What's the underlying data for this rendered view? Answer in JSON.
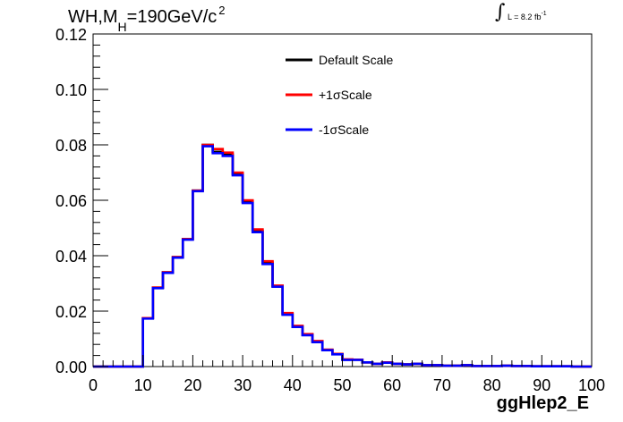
{
  "title": {
    "main": "WH,M",
    "subscript": "H",
    "rest": "=190GeV/c",
    "superscript": "2"
  },
  "lumi": {
    "integral": "∫",
    "text": "L = 8.2 fb",
    "superscript": "-1"
  },
  "legend": {
    "items": [
      {
        "label": "Default Scale",
        "color": "#000000"
      },
      {
        "label": "+1σScale",
        "color": "#ff0000"
      },
      {
        "label": "-1σScale",
        "color": "#0000ff"
      }
    ]
  },
  "chart_data": {
    "type": "line",
    "title": "WH,M_H=190GeV/c^2",
    "xlabel": "ggHlep2_E",
    "ylabel": "",
    "xlim": [
      0,
      100
    ],
    "ylim": [
      0,
      0.12
    ],
    "xticks": [
      0,
      10,
      20,
      30,
      40,
      50,
      60,
      70,
      80,
      90,
      100
    ],
    "yticks": [
      0.0,
      0.02,
      0.04,
      0.06,
      0.08,
      0.1,
      0.12
    ],
    "ytick_labels": [
      "0.00",
      "0.02",
      "0.04",
      "0.06",
      "0.08",
      "0.10",
      "0.12"
    ],
    "bin_edges": [
      0,
      2,
      4,
      6,
      8,
      10,
      12,
      14,
      16,
      18,
      20,
      22,
      24,
      26,
      28,
      30,
      32,
      34,
      36,
      38,
      40,
      42,
      44,
      46,
      48,
      50,
      52,
      54,
      56,
      58,
      60,
      62,
      64,
      66,
      68,
      70,
      72,
      74,
      76,
      78,
      80,
      82,
      84,
      86,
      88,
      90,
      92,
      94,
      96,
      98,
      100
    ],
    "series": [
      {
        "name": "Default Scale",
        "color": "#000000",
        "values": [
          0,
          0,
          0,
          0,
          0,
          0.0175,
          0.0285,
          0.034,
          0.0395,
          0.046,
          0.0635,
          0.08,
          0.0775,
          0.0765,
          0.0695,
          0.0595,
          0.049,
          0.0375,
          0.029,
          0.019,
          0.0145,
          0.0115,
          0.009,
          0.006,
          0.0045,
          0.0025,
          0.0025,
          0.0015,
          0.001,
          0.0015,
          0.001,
          0.0008,
          0.001,
          0.0005,
          0.0005,
          0.0003,
          0.0003,
          0.0005,
          0.0002,
          0.0002,
          0.0002,
          0.0003,
          0.0002,
          0.0002,
          0.0001,
          0.0001,
          0.0001,
          0.0001,
          0.0,
          0.0
        ]
      },
      {
        "name": "+1σScale",
        "color": "#ff0000",
        "values": [
          0,
          0,
          0,
          0,
          0,
          0.0175,
          0.0285,
          0.034,
          0.0395,
          0.046,
          0.0635,
          0.08,
          0.0785,
          0.0772,
          0.07,
          0.06,
          0.0495,
          0.038,
          0.0292,
          0.0193,
          0.0147,
          0.0117,
          0.0092,
          0.0061,
          0.0046,
          0.0026,
          0.0025,
          0.0015,
          0.001,
          0.0015,
          0.001,
          0.0008,
          0.001,
          0.0005,
          0.0005,
          0.0003,
          0.0003,
          0.0005,
          0.0002,
          0.0002,
          0.0002,
          0.0003,
          0.0002,
          0.0002,
          0.0001,
          0.0001,
          0.0001,
          0.0001,
          0.0,
          0.0
        ]
      },
      {
        "name": "-1σScale",
        "color": "#0000ff",
        "values": [
          0,
          0,
          0,
          0,
          0,
          0.0173,
          0.0283,
          0.0338,
          0.0393,
          0.0458,
          0.0633,
          0.0795,
          0.077,
          0.076,
          0.069,
          0.059,
          0.0485,
          0.037,
          0.0288,
          0.0187,
          0.0143,
          0.0113,
          0.0088,
          0.0059,
          0.0044,
          0.0024,
          0.0024,
          0.0015,
          0.001,
          0.0014,
          0.001,
          0.0008,
          0.001,
          0.0005,
          0.0005,
          0.0003,
          0.0003,
          0.0005,
          0.0002,
          0.0002,
          0.0002,
          0.0003,
          0.0002,
          0.0002,
          0.0001,
          0.0001,
          0.0001,
          0.0001,
          0.0,
          0.0
        ]
      }
    ],
    "grid": false,
    "legend_position": "top-center"
  }
}
